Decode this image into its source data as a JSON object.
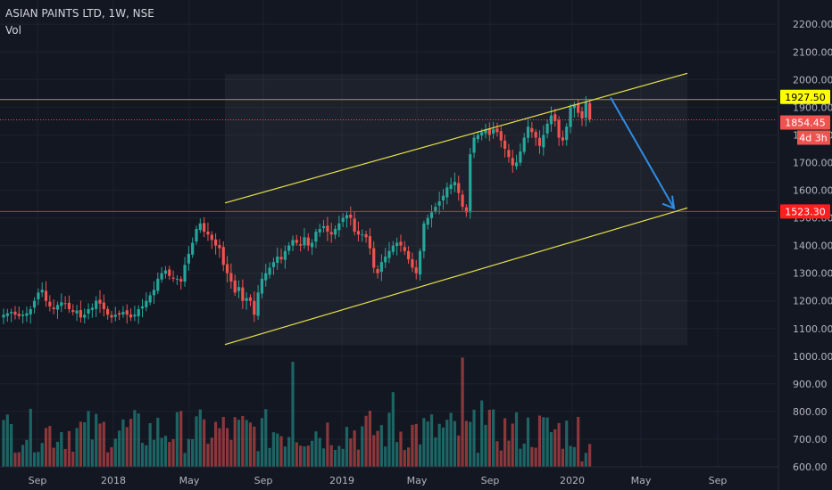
{
  "header": {
    "symbol_line": "ASIAN PAINTS LTD, 1W, NSE",
    "volume_label": "Vol"
  },
  "colors": {
    "background": "#131722",
    "up": "#26a69a",
    "down": "#ef5350",
    "channel": "#e5e04a",
    "arrow": "#2e8de6",
    "resistance": "#ffff00",
    "support": "#ff1e1e"
  },
  "price_tags": {
    "resistance": "1927.50",
    "last": "1854.45",
    "countdown": "4d 3h",
    "support": "1523.30"
  },
  "chart_data": {
    "type": "candlestick",
    "title": "ASIAN PAINTS LTD, 1W, NSE",
    "x_tick_labels": [
      "Sep",
      "2018",
      "May",
      "Sep",
      "2019",
      "May",
      "Sep",
      "2020",
      "May",
      "Sep"
    ],
    "y_tick_labels": [
      "600.00",
      "700.00",
      "800.00",
      "900.00",
      "1000.00",
      "1100.00",
      "1200.00",
      "1300.00",
      "1400.00",
      "1500.00",
      "1600.00",
      "1700.00",
      "1800.00",
      "1900.00",
      "2000.00",
      "2100.00",
      "2200.00"
    ],
    "y_range": [
      560,
      2250
    ],
    "weekly_close": [
      1150,
      1155,
      1160,
      1150,
      1145,
      1150,
      1155,
      1170,
      1200,
      1230,
      1240,
      1200,
      1180,
      1170,
      1185,
      1195,
      1190,
      1170,
      1160,
      1165,
      1140,
      1150,
      1170,
      1175,
      1200,
      1190,
      1170,
      1150,
      1140,
      1150,
      1150,
      1160,
      1150,
      1140,
      1150,
      1170,
      1180,
      1200,
      1220,
      1240,
      1280,
      1300,
      1310,
      1290,
      1280,
      1280,
      1270,
      1330,
      1370,
      1410,
      1460,
      1480,
      1450,
      1440,
      1420,
      1400,
      1390,
      1330,
      1300,
      1270,
      1230,
      1250,
      1200,
      1210,
      1200,
      1150,
      1230,
      1280,
      1300,
      1320,
      1340,
      1360,
      1350,
      1380,
      1400,
      1420,
      1410,
      1400,
      1430,
      1400,
      1410,
      1450,
      1460,
      1470,
      1450,
      1440,
      1460,
      1480,
      1500,
      1510,
      1500,
      1450,
      1440,
      1440,
      1430,
      1390,
      1320,
      1300,
      1340,
      1360,
      1380,
      1400,
      1410,
      1400,
      1380,
      1350,
      1320,
      1300,
      1380,
      1480,
      1500,
      1520,
      1540,
      1560,
      1580,
      1610,
      1620,
      1630,
      1590,
      1540,
      1520,
      1730,
      1790,
      1800,
      1810,
      1820,
      1800,
      1820,
      1810,
      1780,
      1750,
      1720,
      1690,
      1700,
      1740,
      1790,
      1830,
      1810,
      1790,
      1760,
      1800,
      1840,
      1870,
      1850,
      1790,
      1780,
      1830,
      1900,
      1910,
      1880,
      1860,
      1920,
      1855
    ],
    "channel_upper": [
      [
        1554,
        2022.5
      ]
    ],
    "channel_lower": [
      [
        1042,
        1536
      ]
    ],
    "resistance_level": 1927.5,
    "support_level": 1523.3,
    "last_price": 1854.45,
    "projection_arrow": {
      "from_price": 1935,
      "to_price": 1535
    }
  }
}
